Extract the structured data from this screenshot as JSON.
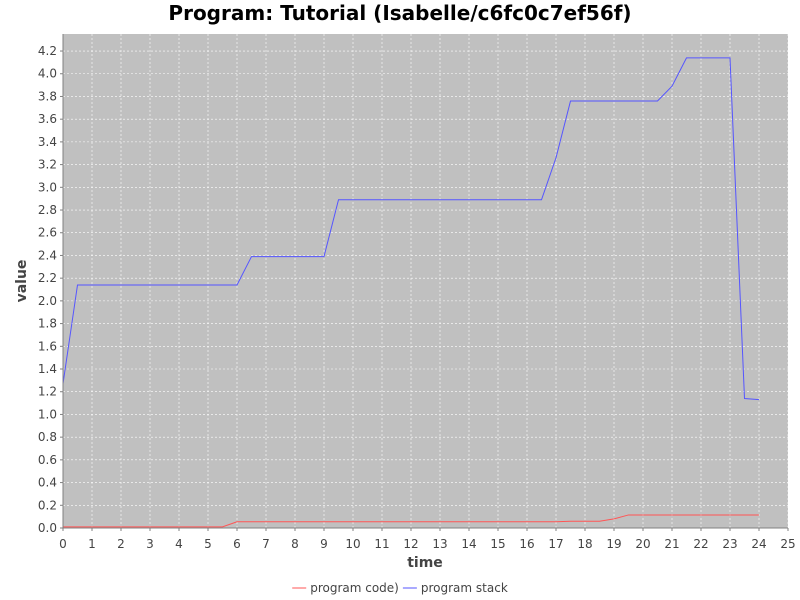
{
  "chart_data": {
    "type": "line",
    "title": "Program: Tutorial (Isabelle/c6fc0c7ef56f)",
    "xlabel": "time",
    "ylabel": "value",
    "xlim": [
      0,
      25
    ],
    "ylim": [
      0,
      4.35
    ],
    "x_ticks": [
      0,
      1,
      2,
      3,
      4,
      5,
      6,
      7,
      8,
      9,
      10,
      11,
      12,
      13,
      14,
      15,
      16,
      17,
      18,
      19,
      20,
      21,
      22,
      23,
      24,
      25
    ],
    "y_ticks": [
      0.0,
      0.2,
      0.4,
      0.6,
      0.8,
      1.0,
      1.2,
      1.4,
      1.6,
      1.8,
      2.0,
      2.2,
      2.4,
      2.6,
      2.8,
      3.0,
      3.2,
      3.4,
      3.6,
      3.8,
      4.0,
      4.2
    ],
    "x_tick_labels": [
      "0",
      "1",
      "2",
      "3",
      "4",
      "5",
      "6",
      "7",
      "8",
      "9",
      "10",
      "11",
      "12",
      "13",
      "14",
      "15",
      "16",
      "17",
      "18",
      "19",
      "20",
      "21",
      "22",
      "23",
      "24",
      "25"
    ],
    "y_tick_labels": [
      "0.0",
      "0.2",
      "0.4",
      "0.6",
      "0.8",
      "1.0",
      "1.2",
      "1.4",
      "1.6",
      "1.8",
      "2.0",
      "2.2",
      "2.4",
      "2.6",
      "2.8",
      "3.0",
      "3.2",
      "3.4",
      "3.6",
      "3.8",
      "4.0",
      "4.2"
    ],
    "grid": true,
    "legend_position": "bottom",
    "background_color": "#c0c0c0",
    "series": [
      {
        "name": "program code)",
        "color": "#ff5555",
        "points": [
          [
            0,
            0.01
          ],
          [
            5.5,
            0.01
          ],
          [
            6,
            0.055
          ],
          [
            17,
            0.055
          ],
          [
            17.5,
            0.06
          ],
          [
            18.5,
            0.06
          ],
          [
            19,
            0.08
          ],
          [
            19.5,
            0.115
          ],
          [
            24,
            0.115
          ]
        ]
      },
      {
        "name": "program stack",
        "color": "#5555ff",
        "points": [
          [
            0,
            1.27
          ],
          [
            0.5,
            2.14
          ],
          [
            6,
            2.14
          ],
          [
            6.5,
            2.39
          ],
          [
            9,
            2.39
          ],
          [
            9.5,
            2.89
          ],
          [
            16.5,
            2.89
          ],
          [
            17,
            3.26
          ],
          [
            17.5,
            3.76
          ],
          [
            20.5,
            3.76
          ],
          [
            21,
            3.89
          ],
          [
            21.5,
            4.14
          ],
          [
            23,
            4.14
          ],
          [
            23.5,
            1.14
          ],
          [
            24,
            1.13
          ]
        ]
      }
    ]
  }
}
